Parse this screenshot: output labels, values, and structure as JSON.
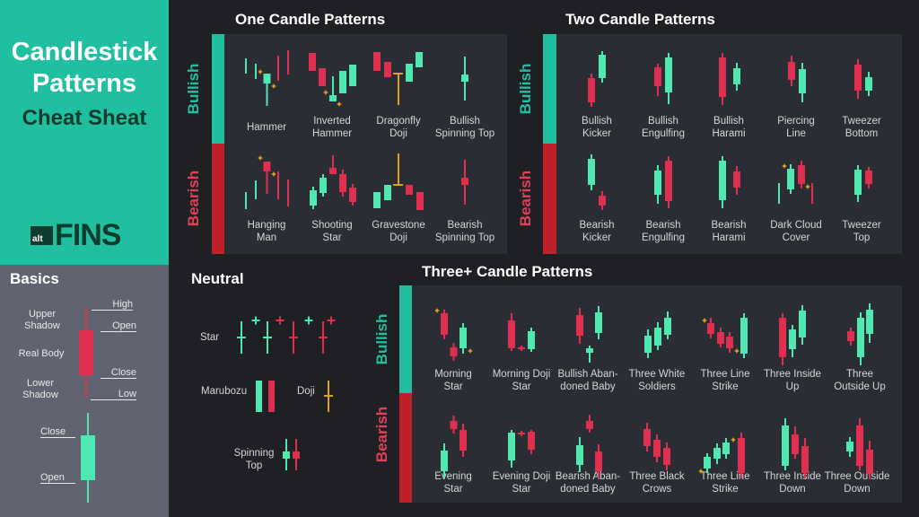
{
  "title": {
    "line1": "Candlestick",
    "line2": "Patterns",
    "line3": "Cheat Sheat"
  },
  "logo": {
    "small": "alt",
    "big": "FINS"
  },
  "basics": {
    "title": "Basics",
    "upper_shadow": [
      "Upper",
      "Shadow"
    ],
    "real_body": "Real Body",
    "lower_shadow": [
      "Lower",
      "Shadow"
    ],
    "high": "High",
    "open": "Open",
    "close": "Close",
    "low": "Low",
    "bull_close": "Close",
    "bull_open": "Open"
  },
  "side_labels": {
    "bullish": "Bullish",
    "bearish": "Bearish"
  },
  "one_candle": {
    "title": "One Candle Patterns",
    "bullish": [
      [
        "Hammer"
      ],
      [
        "Inverted",
        "Hammer"
      ],
      [
        "Dragonfly",
        "Doji"
      ],
      [
        "Bullish",
        "Spinning Top"
      ]
    ],
    "bearish": [
      [
        "Hanging",
        "Man"
      ],
      [
        "Shooting",
        "Star"
      ],
      [
        "Gravestone",
        "Doji"
      ],
      [
        "Bearish",
        "Spinning Top"
      ]
    ]
  },
  "two_candle": {
    "title": "Two Candle Patterns",
    "bullish": [
      [
        "Bullish",
        "Kicker"
      ],
      [
        "Bullish",
        "Engulfing"
      ],
      [
        "Bullish",
        "Harami"
      ],
      [
        "Piercing",
        "Line"
      ],
      [
        "Tweezer",
        "Bottom"
      ]
    ],
    "bearish": [
      [
        "Bearish",
        "Kicker"
      ],
      [
        "Bearish",
        "Engulfing"
      ],
      [
        "Bearish",
        "Harami"
      ],
      [
        "Dark Cloud",
        "Cover"
      ],
      [
        "Tweezer",
        "Top"
      ]
    ]
  },
  "three_candle": {
    "title": "Three+ Candle Patterns",
    "bullish": [
      [
        "Morning",
        "Star"
      ],
      [
        "Morning Doji",
        "Star"
      ],
      [
        "Bullish Aban-",
        "doned Baby"
      ],
      [
        "Three White",
        "Soldiers"
      ],
      [
        "Three Line",
        "Strike"
      ],
      [
        "Three Inside",
        "Up"
      ],
      [
        "Three",
        "Outside Up"
      ]
    ],
    "bearish": [
      [
        "Evening",
        "Star"
      ],
      [
        "Evening Doji",
        "Star"
      ],
      [
        "Bearish Aban-",
        "doned Baby"
      ],
      [
        "Three Black",
        "Crows"
      ],
      [
        "Three Line",
        "Strike"
      ],
      [
        "Three Inside",
        "Down"
      ],
      [
        "Three Outside",
        "Down"
      ]
    ]
  },
  "neutral": {
    "title": "Neutral",
    "star": "Star",
    "marubozu": "Marubozu",
    "doji": "Doji",
    "spinning_top": [
      "Spinning",
      "Top"
    ]
  },
  "colors": {
    "bullish": "#4fe8b0",
    "bearish": "#e0304f",
    "doji": "#e0a020",
    "accent": "#1fbfa0",
    "bearish_bar": "#c0202a",
    "panel": "#2a2d33",
    "background": "#1f2024"
  }
}
